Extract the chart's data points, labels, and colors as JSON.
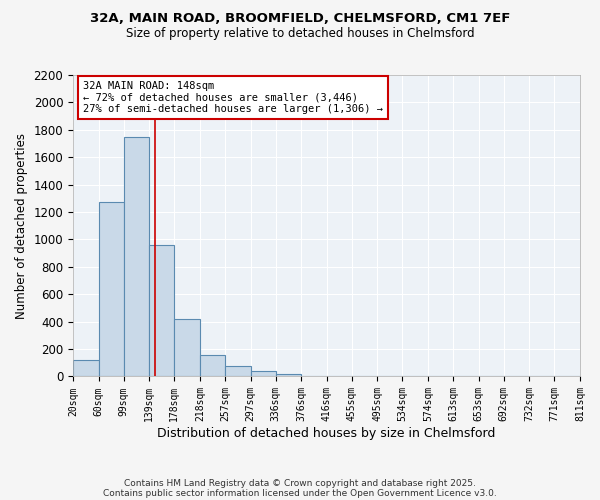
{
  "title_line1": "32A, MAIN ROAD, BROOMFIELD, CHELMSFORD, CM1 7EF",
  "title_line2": "Size of property relative to detached houses in Chelmsford",
  "xlabel": "Distribution of detached houses by size in Chelmsford",
  "ylabel": "Number of detached properties",
  "bin_edges": [
    20,
    60,
    99,
    139,
    178,
    218,
    257,
    297,
    336,
    376,
    416,
    455,
    495,
    534,
    574,
    613,
    653,
    692,
    732,
    771,
    811
  ],
  "bar_heights": [
    120,
    1270,
    1750,
    960,
    420,
    155,
    80,
    40,
    20,
    0,
    0,
    0,
    0,
    0,
    0,
    0,
    0,
    0,
    0,
    0
  ],
  "bar_color": "#c9d9e8",
  "bar_edge_color": "#5a8ab0",
  "bar_edge_width": 0.8,
  "property_line_x": 148,
  "property_line_color": "#cc0000",
  "ylim": [
    0,
    2200
  ],
  "yticks": [
    0,
    200,
    400,
    600,
    800,
    1000,
    1200,
    1400,
    1600,
    1800,
    2000,
    2200
  ],
  "annotation_text": "32A MAIN ROAD: 148sqm\n← 72% of detached houses are smaller (3,446)\n27% of semi-detached houses are larger (1,306) →",
  "annotation_box_color": "#ffffff",
  "annotation_box_edge_color": "#cc0000",
  "footer_line1": "Contains HM Land Registry data © Crown copyright and database right 2025.",
  "footer_line2": "Contains public sector information licensed under the Open Government Licence v3.0.",
  "bg_color": "#edf2f7",
  "grid_color": "#ffffff",
  "tick_labels": [
    "20sqm",
    "60sqm",
    "99sqm",
    "139sqm",
    "178sqm",
    "218sqm",
    "257sqm",
    "297sqm",
    "336sqm",
    "376sqm",
    "416sqm",
    "455sqm",
    "495sqm",
    "534sqm",
    "574sqm",
    "613sqm",
    "653sqm",
    "692sqm",
    "732sqm",
    "771sqm",
    "811sqm"
  ],
  "fig_bg_color": "#f5f5f5"
}
